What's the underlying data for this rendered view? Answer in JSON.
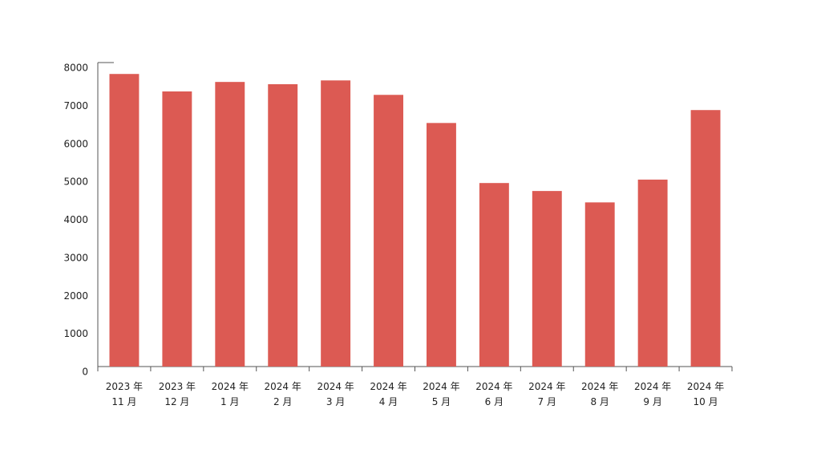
{
  "chart_data": {
    "type": "bar",
    "categories": [
      "2023 年\n11 月",
      "2023 年\n12 月",
      "2024 年\n1 月",
      "2024 年\n2 月",
      "2024 年\n3 月",
      "2024 年\n4 月",
      "2024 年\n5 月",
      "2024 年\n6 月",
      "2024 年\n7 月",
      "2024 年\n8 月",
      "2024 年\n9 月",
      "2024 年\n10 月"
    ],
    "values": [
      7700,
      7240,
      7490,
      7430,
      7530,
      7150,
      6410,
      4830,
      4620,
      4320,
      4920,
      6750
    ],
    "color": "#dc5a53",
    "ylim": [
      0,
      8000
    ],
    "yticks": [
      0,
      1000,
      2000,
      3000,
      4000,
      5000,
      6000,
      7000,
      8000
    ],
    "grid": false
  }
}
